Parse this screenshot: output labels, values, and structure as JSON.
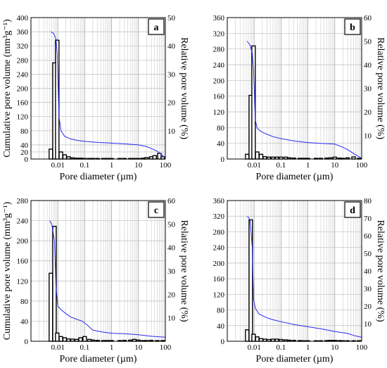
{
  "chart_data": [
    {
      "panel": "a",
      "type": "bar",
      "xlabel": "Pore diameter (µm)",
      "ylabel_left": "Cumulative pore volume (mm³g⁻¹)",
      "ylabel_right": "Relative pore volume (%)",
      "x_scale": "log",
      "xlim": [
        0.001,
        100
      ],
      "x_tick_labels": [
        "0.01",
        "0.1",
        "1",
        "10",
        "100"
      ],
      "x_tick_values": [
        0.01,
        0.1,
        1,
        10,
        100
      ],
      "ylim_left": [
        0,
        400
      ],
      "y_ticks_left": [
        0,
        20,
        40,
        80,
        120,
        160,
        200,
        240,
        280,
        320,
        360,
        400
      ],
      "ylim_right": [
        0,
        50
      ],
      "y_ticks_right": [
        10,
        20,
        30,
        40,
        50
      ],
      "grid": true,
      "series": [
        {
          "kind": "bars",
          "axis": "right",
          "x": [
            0.0055,
            0.0075,
            0.0095,
            0.013,
            0.018,
            0.025,
            0.035,
            0.05,
            0.07,
            0.1,
            0.15,
            0.2,
            0.3,
            0.5,
            0.7,
            1,
            2,
            3,
            5,
            7,
            10,
            15,
            20,
            30,
            40,
            60,
            80
          ],
          "values": [
            3.5,
            34,
            42,
            2.5,
            1.5,
            0.8,
            0.4,
            0.3,
            0.3,
            0.2,
            0.2,
            0.2,
            0.2,
            0.2,
            0.2,
            0.2,
            0.2,
            0.2,
            0.2,
            0.2,
            0.2,
            0.3,
            0.5,
            0.8,
            1.2,
            2,
            0.8
          ]
        },
        {
          "kind": "line",
          "axis": "left",
          "color": "#2a2aee",
          "x": [
            0.0055,
            0.007,
            0.0085,
            0.0095,
            0.011,
            0.013,
            0.018,
            0.03,
            0.05,
            0.1,
            0.3,
            1,
            3,
            10,
            20,
            30,
            50,
            70,
            100
          ],
          "y": [
            360,
            355,
            340,
            300,
            120,
            80,
            64,
            57,
            53,
            50,
            47,
            45,
            43,
            40,
            35,
            30,
            22,
            14,
            2
          ]
        }
      ]
    },
    {
      "panel": "b",
      "type": "bar",
      "xlabel": "Pore diameter (µm)",
      "ylabel_left": "",
      "ylabel_right": "Relative pore volume (%)",
      "x_scale": "log",
      "xlim": [
        0.001,
        100
      ],
      "x_tick_labels": [
        "0.01",
        "0.1",
        "1",
        "10",
        "100"
      ],
      "x_tick_values": [
        0.01,
        0.1,
        1,
        10,
        100
      ],
      "ylim_left": [
        0,
        360
      ],
      "y_ticks_left": [
        0,
        40,
        80,
        120,
        160,
        200,
        240,
        280,
        320,
        360
      ],
      "ylim_right": [
        0,
        60
      ],
      "y_ticks_right": [
        10,
        20,
        30,
        40,
        50,
        60
      ],
      "grid": true,
      "series": [
        {
          "kind": "bars",
          "axis": "right",
          "x": [
            0.0055,
            0.0075,
            0.0095,
            0.013,
            0.018,
            0.025,
            0.035,
            0.05,
            0.07,
            0.1,
            0.15,
            0.2,
            0.3,
            0.5,
            0.7,
            1,
            2,
            3,
            5,
            7,
            10,
            15,
            20,
            30,
            50,
            80
          ],
          "values": [
            2,
            27,
            48,
            3,
            2,
            1,
            0.8,
            0.8,
            0.8,
            0.8,
            0.8,
            0.5,
            0.4,
            0.3,
            0.3,
            0.3,
            0.3,
            0.3,
            0.4,
            0.5,
            0.8,
            0.4,
            0.3,
            0.5,
            0.9,
            0.3
          ]
        },
        {
          "kind": "line",
          "axis": "left",
          "color": "#2a2aee",
          "x": [
            0.0055,
            0.007,
            0.0085,
            0.0095,
            0.011,
            0.013,
            0.018,
            0.03,
            0.05,
            0.1,
            0.3,
            1,
            3,
            10,
            20,
            30,
            50,
            100
          ],
          "y": [
            300,
            290,
            270,
            230,
            100,
            78,
            70,
            63,
            57,
            52,
            46,
            42,
            40,
            38,
            30,
            24,
            14,
            2
          ]
        }
      ]
    },
    {
      "panel": "c",
      "type": "bar",
      "xlabel": "Pore diameter (µm)",
      "ylabel_left": "Cumulative pore volume (mm³g⁻¹)",
      "ylabel_right": "Relative pore volume (%)",
      "x_scale": "log",
      "xlim": [
        0.001,
        100
      ],
      "x_tick_labels": [
        "0.01",
        "0.1",
        "1",
        "10",
        "100"
      ],
      "x_tick_values": [
        0.01,
        0.1,
        1,
        10,
        100
      ],
      "ylim_left": [
        0,
        280
      ],
      "y_ticks_left": [
        0,
        40,
        80,
        120,
        160,
        200,
        240,
        280
      ],
      "ylim_right": [
        0,
        60
      ],
      "y_ticks_right": [
        10,
        20,
        30,
        40,
        50,
        60
      ],
      "grid": true,
      "series": [
        {
          "kind": "bars",
          "axis": "right",
          "x": [
            0.0055,
            0.0075,
            0.0095,
            0.013,
            0.018,
            0.025,
            0.035,
            0.05,
            0.07,
            0.1,
            0.15,
            0.2,
            0.3,
            0.5,
            0.7,
            1,
            2,
            3,
            5,
            7,
            10,
            15,
            20,
            30,
            50,
            80
          ],
          "values": [
            29,
            49,
            3.5,
            2,
            1.5,
            1,
            0.9,
            0.8,
            1.5,
            2,
            0.8,
            0.5,
            0.4,
            0.3,
            0.3,
            0.3,
            0.3,
            0.4,
            0.5,
            0.8,
            0.5,
            0.3,
            0.3,
            0.4,
            0.3,
            0.3
          ]
        },
        {
          "kind": "line",
          "axis": "left",
          "color": "#2a2aee",
          "x": [
            0.005,
            0.006,
            0.0075,
            0.0085,
            0.01,
            0.013,
            0.02,
            0.03,
            0.05,
            0.08,
            0.12,
            0.2,
            0.5,
            1,
            3,
            10,
            30,
            100
          ],
          "y": [
            240,
            232,
            200,
            110,
            70,
            63,
            55,
            48,
            44,
            40,
            33,
            22,
            18,
            16,
            15,
            13,
            10,
            8
          ]
        }
      ]
    },
    {
      "panel": "d",
      "type": "bar",
      "xlabel": "Pore diameter (µm)",
      "ylabel_left": "",
      "ylabel_right": "Relative pore volume (%)",
      "x_scale": "log",
      "xlim": [
        0.001,
        100
      ],
      "x_tick_labels": [
        "0.01",
        "0.1",
        "1",
        "10",
        "100"
      ],
      "x_tick_values": [
        0.01,
        0.1,
        1,
        10,
        100
      ],
      "ylim_left": [
        0,
        360
      ],
      "y_ticks_left": [
        0,
        40,
        80,
        120,
        160,
        200,
        240,
        280,
        320,
        360
      ],
      "ylim_right": [
        0,
        80
      ],
      "y_ticks_right": [
        10,
        20,
        30,
        40,
        50,
        60,
        70,
        80
      ],
      "grid": true,
      "series": [
        {
          "kind": "bars",
          "axis": "right",
          "x": [
            0.0055,
            0.0075,
            0.0095,
            0.013,
            0.018,
            0.025,
            0.035,
            0.05,
            0.07,
            0.1,
            0.15,
            0.2,
            0.3,
            0.5,
            0.7,
            1,
            2,
            3,
            5,
            7,
            10,
            15,
            20,
            30,
            50,
            80
          ],
          "values": [
            6.5,
            69,
            4,
            2.5,
            1.5,
            1.2,
            1,
            1.2,
            1.2,
            1,
            0.8,
            0.6,
            0.5,
            0.4,
            0.3,
            0.3,
            0.3,
            0.3,
            0.4,
            0.5,
            0.5,
            0.4,
            0.3,
            0.3,
            0.3,
            0.3
          ]
        },
        {
          "kind": "line",
          "axis": "left",
          "color": "#2a2aee",
          "x": [
            0.0055,
            0.006,
            0.007,
            0.0085,
            0.0095,
            0.011,
            0.015,
            0.03,
            0.05,
            0.1,
            0.3,
            1,
            3,
            10,
            30,
            50,
            100
          ],
          "y": [
            318,
            318,
            310,
            240,
            110,
            85,
            70,
            60,
            55,
            50,
            43,
            37,
            32,
            25,
            20,
            15,
            10
          ]
        }
      ]
    }
  ]
}
